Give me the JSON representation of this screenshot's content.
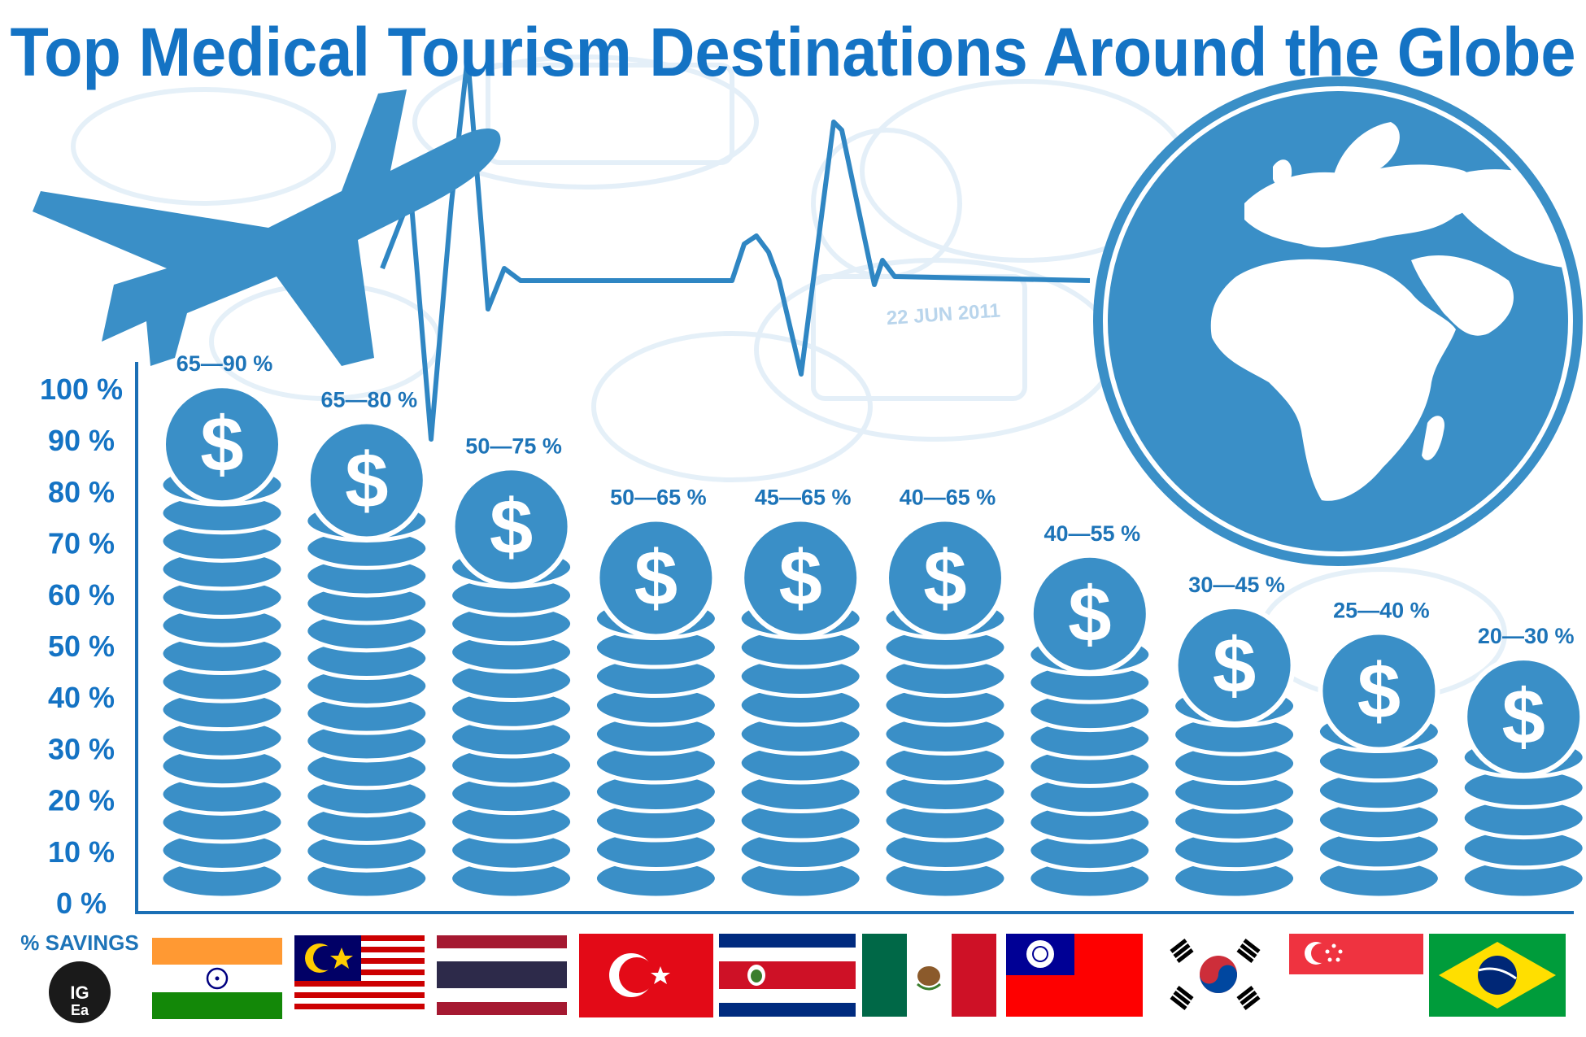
{
  "title": "Top Medical Tourism Destinations Around the Globe",
  "colors": {
    "title": "#1473c4",
    "coin": "#3a8fc7",
    "coin_edge": "#ffffff",
    "axis": "#1b6fb5",
    "label": "#1d74b8",
    "background_pattern": "#cfe3f3"
  },
  "icons": [
    "airplane-icon",
    "heartbeat-line-icon",
    "globe-icon",
    "dollar-coin-icon"
  ],
  "savings_label": "% SAVINGS",
  "logo_text": "IGEA",
  "chart_data": {
    "type": "bar",
    "style": "coin stacks",
    "ylabel": "",
    "ylim": [
      0,
      100
    ],
    "yticks": [
      "0 %",
      "10 %",
      "20 %",
      "30 %",
      "40 %",
      "50 %",
      "60 %",
      "70 %",
      "80 %",
      "90 %",
      "100 %"
    ],
    "grid": false,
    "categories": [
      "India",
      "Malaysia",
      "Thailand",
      "Turkey",
      "Costa Rica",
      "Mexico",
      "Taiwan",
      "South Korea",
      "Singapore",
      "Brazil"
    ],
    "labels": [
      "65—90 %",
      "65—80 %",
      "50—75 %",
      "50—65 %",
      "45—65 %",
      "40—65 %",
      "40—55 %",
      "30—45 %",
      "25—40 %",
      "20—30 %"
    ],
    "range_low": [
      65,
      65,
      50,
      50,
      45,
      40,
      40,
      30,
      25,
      20
    ],
    "range_high": [
      90,
      80,
      75,
      65,
      65,
      65,
      55,
      45,
      40,
      30
    ],
    "values": [
      90,
      83,
      74,
      64,
      64,
      64,
      57,
      47,
      42,
      37
    ],
    "category_icons": [
      "flag-india-icon",
      "flag-malaysia-icon",
      "flag-thailand-icon",
      "flag-turkey-icon",
      "flag-costa-rica-icon",
      "flag-mexico-icon",
      "flag-taiwan-icon",
      "flag-south-korea-icon",
      "flag-singapore-icon",
      "flag-brazil-icon"
    ]
  }
}
